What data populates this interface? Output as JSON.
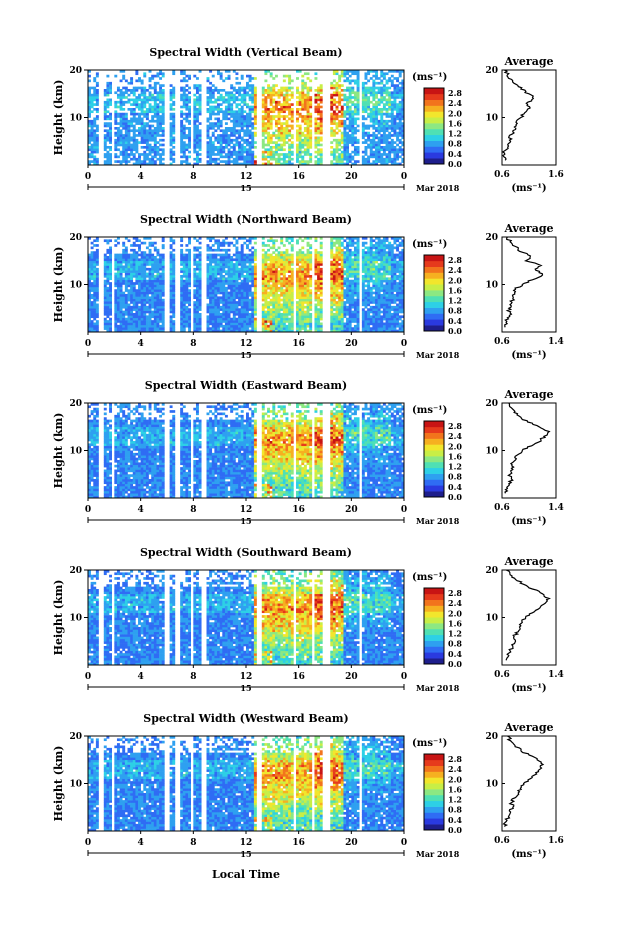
{
  "chart_data": {
    "type": "heatmap",
    "xlabel": "Local Time",
    "x_ticks": [
      "0",
      "4",
      "8",
      "12",
      "16",
      "20",
      "0"
    ],
    "date_day": "15",
    "date_label": "Mar 2018",
    "y_ticks": [
      "10",
      "20"
    ],
    "ylabel": "Height (km)",
    "colorbar": {
      "unit": "(ms⁻¹)",
      "ticks": [
        "0.0",
        "0.4",
        "0.8",
        "1.2",
        "1.6",
        "2.0",
        "2.4",
        "2.8"
      ],
      "colors": [
        "#1e1e8c",
        "#2a3ae0",
        "#2f6cf4",
        "#2ea0f0",
        "#2dd0e6",
        "#4fe0b4",
        "#8ce882",
        "#c8ee46",
        "#f2e62c",
        "#f6b020",
        "#f2741c",
        "#e63a1c",
        "#c81414"
      ],
      "range": [
        0,
        3.0
      ]
    },
    "panels": [
      {
        "name": "vertical",
        "title": "Spectral Width (Vertical Beam)",
        "profile": {
          "title": "Average",
          "xticks": [
            "0.6",
            "1.6"
          ],
          "xlim": [
            0.6,
            1.6
          ],
          "yticks": [
            "10",
            "20"
          ],
          "xlabel": "(ms⁻¹)",
          "points": [
            [
              0.66,
              1
            ],
            [
              0.62,
              2
            ],
            [
              0.65,
              3
            ],
            [
              0.72,
              4
            ],
            [
              0.76,
              5
            ],
            [
              0.73,
              6
            ],
            [
              0.8,
              7
            ],
            [
              0.83,
              8
            ],
            [
              0.86,
              9
            ],
            [
              0.95,
              10
            ],
            [
              1.02,
              11
            ],
            [
              1.12,
              12
            ],
            [
              1.05,
              13
            ],
            [
              1.18,
              14
            ],
            [
              1.1,
              15
            ],
            [
              0.95,
              16
            ],
            [
              0.86,
              17
            ],
            [
              0.78,
              18
            ],
            [
              0.7,
              19
            ],
            [
              0.64,
              20
            ]
          ]
        }
      },
      {
        "name": "northward",
        "title": "Spectral Width (Northward Beam)",
        "profile": {
          "title": "Average",
          "xticks": [
            "0.6",
            "1.4"
          ],
          "xlim": [
            0.6,
            1.4
          ],
          "yticks": [
            "10",
            "20"
          ],
          "xlabel": "(ms⁻¹)",
          "points": [
            [
              0.64,
              1
            ],
            [
              0.66,
              2
            ],
            [
              0.68,
              3
            ],
            [
              0.72,
              4
            ],
            [
              0.7,
              5
            ],
            [
              0.74,
              6
            ],
            [
              0.76,
              7
            ],
            [
              0.79,
              8
            ],
            [
              0.8,
              9
            ],
            [
              0.9,
              10
            ],
            [
              1.05,
              11
            ],
            [
              1.2,
              12
            ],
            [
              1.1,
              13
            ],
            [
              1.18,
              14
            ],
            [
              0.95,
              15
            ],
            [
              1.02,
              16
            ],
            [
              0.86,
              17
            ],
            [
              0.8,
              18
            ],
            [
              0.72,
              19
            ],
            [
              0.68,
              20
            ]
          ]
        }
      },
      {
        "name": "eastward",
        "title": "Spectral Width (Eastward Beam)",
        "profile": {
          "title": "Average",
          "xticks": [
            "0.6",
            "1.4"
          ],
          "xlim": [
            0.6,
            1.4
          ],
          "yticks": [
            "10",
            "20"
          ],
          "xlabel": "(ms⁻¹)",
          "points": [
            [
              0.65,
              1
            ],
            [
              0.68,
              2
            ],
            [
              0.7,
              3
            ],
            [
              0.74,
              4
            ],
            [
              0.72,
              5
            ],
            [
              0.76,
              6
            ],
            [
              0.75,
              7
            ],
            [
              0.8,
              8
            ],
            [
              0.82,
              9
            ],
            [
              0.9,
              10
            ],
            [
              1.04,
              11
            ],
            [
              1.18,
              12
            ],
            [
              1.22,
              13
            ],
            [
              1.3,
              14
            ],
            [
              1.15,
              15
            ],
            [
              0.98,
              16
            ],
            [
              0.88,
              17
            ],
            [
              0.78,
              18
            ],
            [
              0.74,
              19
            ],
            [
              0.7,
              20
            ]
          ]
        }
      },
      {
        "name": "southward",
        "title": "Spectral Width (Southward Beam)",
        "profile": {
          "title": "Average",
          "xticks": [
            "0.6",
            "1.4"
          ],
          "xlim": [
            0.6,
            1.4
          ],
          "yticks": [
            "10",
            "20"
          ],
          "xlabel": "(ms⁻¹)",
          "points": [
            [
              0.66,
              1
            ],
            [
              0.7,
              2
            ],
            [
              0.72,
              3
            ],
            [
              0.76,
              4
            ],
            [
              0.8,
              5
            ],
            [
              0.78,
              6
            ],
            [
              0.84,
              7
            ],
            [
              0.86,
              8
            ],
            [
              0.9,
              9
            ],
            [
              0.95,
              10
            ],
            [
              1.05,
              11
            ],
            [
              1.16,
              12
            ],
            [
              1.24,
              13
            ],
            [
              1.3,
              14
            ],
            [
              1.2,
              15
            ],
            [
              1.05,
              16
            ],
            [
              0.92,
              17
            ],
            [
              0.8,
              18
            ],
            [
              0.72,
              19
            ],
            [
              0.66,
              20
            ]
          ]
        }
      },
      {
        "name": "westward",
        "title": "Spectral Width (Westward Beam)",
        "profile": {
          "title": "Average",
          "xticks": [
            "0.6",
            "1.6"
          ],
          "xlim": [
            0.6,
            1.6
          ],
          "yticks": [
            "10",
            "20"
          ],
          "xlabel": "(ms⁻¹)",
          "points": [
            [
              0.64,
              1
            ],
            [
              0.68,
              2
            ],
            [
              0.72,
              3
            ],
            [
              0.76,
              4
            ],
            [
              0.8,
              5
            ],
            [
              0.78,
              6
            ],
            [
              0.84,
              7
            ],
            [
              0.9,
              8
            ],
            [
              0.94,
              9
            ],
            [
              1.0,
              10
            ],
            [
              1.12,
              11
            ],
            [
              1.24,
              12
            ],
            [
              1.3,
              13
            ],
            [
              1.36,
              14
            ],
            [
              1.25,
              15
            ],
            [
              1.1,
              16
            ],
            [
              0.95,
              17
            ],
            [
              0.84,
              18
            ],
            [
              0.76,
              19
            ],
            [
              0.7,
              20
            ]
          ]
        }
      }
    ]
  }
}
